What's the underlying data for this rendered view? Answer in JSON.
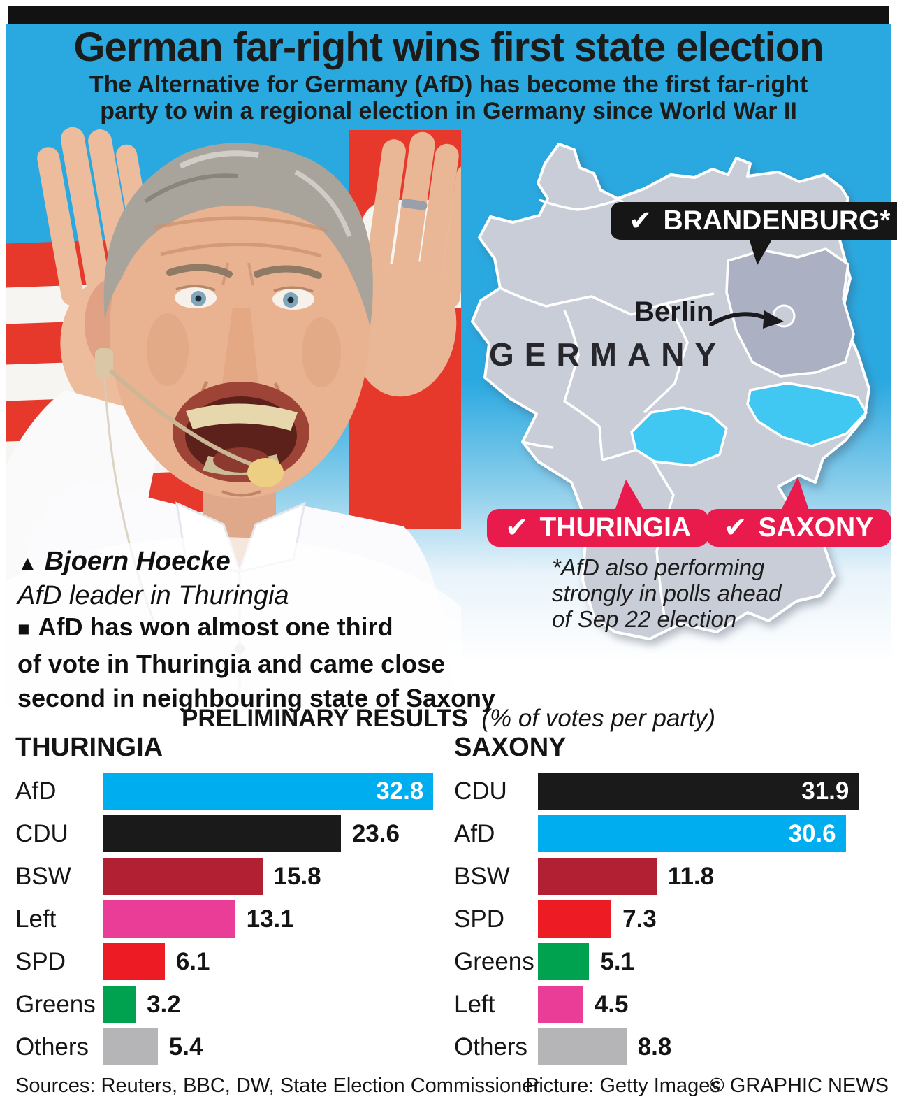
{
  "page": {
    "title": "German far-right wins first state election",
    "subtitle_line1": "The Alternative for Germany (AfD) has become the first far-right",
    "subtitle_line2": "party to win a regional election in Germany since World War II"
  },
  "colors": {
    "header_bg_cyan": "#2aa9e1",
    "map_base_gray": "#c9cdd7",
    "map_brandenburg_gray": "#abb1c3",
    "map_highlight_cyan": "#41c8f2",
    "callout_red": "#e91a4c",
    "callout_black": "#161616",
    "bar_afd_cyan": "#00aeef",
    "bar_cdu_black": "#1a1a1a",
    "bar_bsw_darkred": "#b22033",
    "bar_left_pink": "#ea3d97",
    "bar_spd_red": "#ed1c24",
    "bar_greens_green": "#00a24f",
    "bar_others_gray": "#b5b5b7"
  },
  "photo": {
    "caption_marker": "▲",
    "caption_name": "Bjoern Hoecke",
    "caption_role": "AfD leader in Thuringia"
  },
  "standfirst": {
    "marker": "■",
    "line1": "AfD has won almost one third",
    "line2": "of vote in Thuringia and came close",
    "line3": "second in neighbouring state of Saxony"
  },
  "map": {
    "country": "GERMANY",
    "city": "Berlin",
    "check": "✔",
    "callout_brandenburg": "BRANDENBURG*",
    "callout_thuringia": "THURINGIA",
    "callout_saxony": "SAXONY",
    "footnote_line1": "*AfD also performing",
    "footnote_line2": "strongly in polls ahead",
    "footnote_line3": "of Sep 22 election"
  },
  "results_header": {
    "title": "PRELIMINARY RESULTS",
    "note": "(% of votes per party)"
  },
  "chart_data": [
    {
      "type": "bar",
      "orientation": "horizontal",
      "title": "THURINGIA",
      "categories": [
        "AfD",
        "CDU",
        "BSW",
        "Left",
        "SPD",
        "Greens",
        "Others"
      ],
      "values": [
        32.8,
        23.6,
        15.8,
        13.1,
        6.1,
        3.2,
        5.4
      ],
      "colors": [
        "#00aeef",
        "#1a1a1a",
        "#b22033",
        "#ea3d97",
        "#ed1c24",
        "#00a24f",
        "#b5b5b7"
      ],
      "value_inside": [
        true,
        false,
        false,
        false,
        false,
        false,
        false
      ],
      "xlim": [
        0,
        33
      ],
      "unit": "% of votes per party",
      "grid": false,
      "legend": false
    },
    {
      "type": "bar",
      "orientation": "horizontal",
      "title": "SAXONY",
      "categories": [
        "CDU",
        "AfD",
        "BSW",
        "SPD",
        "Greens",
        "Left",
        "Others"
      ],
      "values": [
        31.9,
        30.6,
        11.8,
        7.3,
        5.1,
        4.5,
        8.8
      ],
      "colors": [
        "#1a1a1a",
        "#00aeef",
        "#b22033",
        "#ed1c24",
        "#00a24f",
        "#ea3d97",
        "#b5b5b7"
      ],
      "value_inside": [
        true,
        true,
        false,
        false,
        false,
        false,
        false
      ],
      "xlim": [
        0,
        33
      ],
      "unit": "% of votes per party",
      "grid": false,
      "legend": false
    }
  ],
  "footer": {
    "sources": "Sources: Reuters, BBC, DW, State Election Commissioner",
    "picture": "Picture: Getty Images",
    "credit": "© GRAPHIC NEWS"
  }
}
